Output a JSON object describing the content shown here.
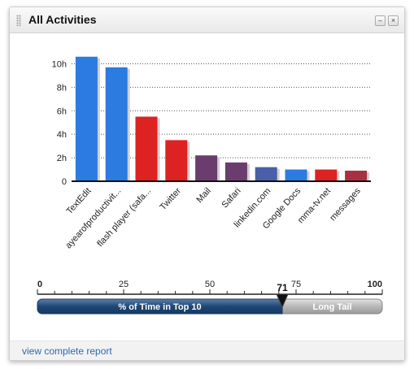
{
  "widget": {
    "title": "All Activities",
    "minimize_label": "–",
    "close_label": "×",
    "footer_link": "view complete report"
  },
  "chart_data": {
    "type": "bar",
    "categories": [
      "TextEdit",
      "ayearofproductivit...",
      "flash player (safa...",
      "Twitter",
      "Mail",
      "Safari",
      "linkedin.com",
      "Google Docs",
      "mma-tv.net",
      "messages"
    ],
    "values": [
      10.6,
      9.7,
      5.5,
      3.5,
      2.2,
      1.6,
      1.2,
      1.0,
      1.0,
      0.9
    ],
    "colors": [
      "#2b7be0",
      "#2b7be0",
      "#dd2222",
      "#dd2222",
      "#6a3d6e",
      "#6a3d6e",
      "#4a5fa8",
      "#2b7be0",
      "#dd2222",
      "#a83040"
    ],
    "y_ticks": [
      "0",
      "2h",
      "4h",
      "6h",
      "8h",
      "10h"
    ],
    "y_unit": "h",
    "ylim": [
      0,
      11
    ],
    "grid": true
  },
  "slider": {
    "ticks": [
      "0",
      "25",
      "50",
      "75",
      "100"
    ],
    "value": 71,
    "value_label": "71",
    "max": 100,
    "top_label": "% of Time in Top 10",
    "tail_label": "Long Tail",
    "fill_color": "#1f4775",
    "tail_color": "#b8b8b8"
  }
}
